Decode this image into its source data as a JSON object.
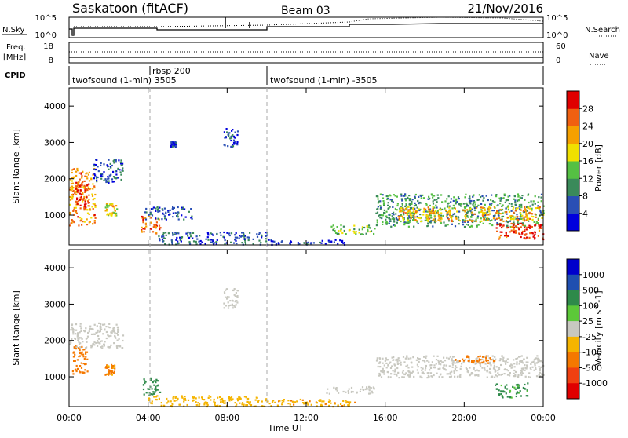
{
  "header": {
    "station": "Saskatoon (fitACF)",
    "beam": "Beam 03",
    "date": "21/Nov/2016"
  },
  "noise_panel": {
    "left_label": "N.Sky",
    "right_label": "N.Search",
    "left_ticks": [
      "10^5",
      "10^0"
    ],
    "right_ticks": [
      "10^5",
      "10^0"
    ]
  },
  "freq_panel": {
    "left_label_line1": "Freq.",
    "left_label_line2": "[MHz]",
    "right_label": "Nave",
    "left_ticks": [
      "18",
      "8"
    ],
    "right_ticks": [
      "60",
      "0"
    ]
  },
  "cpid": {
    "label": "CPID",
    "segments": [
      {
        "start_hour": 0.0,
        "text": "twofsound (1-min) 3505"
      },
      {
        "start_hour": 3.85,
        "text": "rbsp 200"
      },
      {
        "start_hour": 10.0,
        "text": "twofsound (1-min) -3505"
      }
    ]
  },
  "colors": {
    "power_scale": [
      "#0000dd",
      "#2a4fb5",
      "#3a8a5a",
      "#55c043",
      "#f0e000",
      "#f5a000",
      "#f06010",
      "#e00000"
    ],
    "velocity_scale": [
      "#0000cc",
      "#1f4fb0",
      "#2e8a4a",
      "#5cc838",
      "#c8c8c0",
      "#f5b400",
      "#f57800",
      "#f04010",
      "#e00000"
    ],
    "ground_scatter": "#c8c8c0"
  },
  "chart_data": [
    {
      "type": "heatmap",
      "name": "power",
      "ylabel": "Slant Range [km]",
      "yticks": [
        1000,
        2000,
        3000,
        4000
      ],
      "ylim": [
        180,
        4500
      ],
      "xlim": [
        0,
        24
      ],
      "colorbar_label": "Power [dB]",
      "colorbar_ticks": [
        "4",
        "8",
        "12",
        "16",
        "20",
        "24",
        "28"
      ],
      "colorbar_range": [
        0,
        30
      ],
      "blobs": [
        {
          "t0": 0.0,
          "t1": 1.3,
          "r0": 700,
          "r1": 2300,
          "level": 22
        },
        {
          "t0": 0.3,
          "t1": 0.9,
          "r0": 1200,
          "r1": 1900,
          "level": 28
        },
        {
          "t0": 1.2,
          "t1": 2.7,
          "r0": 1900,
          "r1": 2550,
          "level": 6
        },
        {
          "t0": 1.8,
          "t1": 2.4,
          "r0": 1000,
          "r1": 1350,
          "level": 18
        },
        {
          "t0": 3.6,
          "t1": 4.6,
          "r0": 500,
          "r1": 1000,
          "level": 24
        },
        {
          "t0": 3.8,
          "t1": 6.2,
          "r0": 900,
          "r1": 1250,
          "level": 6
        },
        {
          "t0": 4.5,
          "t1": 10.0,
          "r0": 200,
          "r1": 550,
          "level": 6
        },
        {
          "t0": 5.1,
          "t1": 5.4,
          "r0": 2900,
          "r1": 3050,
          "level": 4
        },
        {
          "t0": 7.8,
          "t1": 8.5,
          "r0": 2900,
          "r1": 3400,
          "level": 5
        },
        {
          "t0": 10.0,
          "t1": 14.0,
          "r0": 200,
          "r1": 350,
          "level": 3
        },
        {
          "t0": 13.2,
          "t1": 15.5,
          "r0": 480,
          "r1": 750,
          "level": 14
        },
        {
          "t0": 15.5,
          "t1": 24.0,
          "r0": 700,
          "r1": 1600,
          "level": 10
        },
        {
          "t0": 16.5,
          "t1": 24.0,
          "r0": 850,
          "r1": 1250,
          "level": 20
        },
        {
          "t0": 21.5,
          "t1": 24.0,
          "r0": 350,
          "r1": 800,
          "level": 27
        }
      ]
    },
    {
      "type": "heatmap",
      "name": "velocity",
      "ylabel": "Slant Range [km]",
      "xlabel": "Time UT",
      "xticks": [
        "00:00",
        "04:00",
        "08:00",
        "12:00",
        "16:00",
        "20:00",
        "00:00"
      ],
      "yticks": [
        1000,
        2000,
        3000,
        4000
      ],
      "ylim": [
        180,
        4500
      ],
      "xlim": [
        0,
        24
      ],
      "colorbar_label": "Velocity [m s^-1]",
      "colorbar_ticks": [
        "1000",
        "500",
        "100",
        "25",
        "-25",
        "-100",
        "-500",
        "-1000"
      ],
      "blobs": [
        {
          "t0": 0.0,
          "t1": 2.7,
          "r0": 1800,
          "r1": 2500,
          "v": 0,
          "gs": true
        },
        {
          "t0": 0.1,
          "t1": 0.9,
          "r0": 1100,
          "r1": 1900,
          "v": -400
        },
        {
          "t0": 1.8,
          "t1": 2.3,
          "r0": 1050,
          "r1": 1350,
          "v": -120
        },
        {
          "t0": 3.7,
          "t1": 4.6,
          "r0": 500,
          "r1": 1000,
          "v": 150
        },
        {
          "t0": 4.0,
          "t1": 10.0,
          "r0": 200,
          "r1": 500,
          "v": -60
        },
        {
          "t0": 7.8,
          "t1": 8.5,
          "r0": 2900,
          "r1": 3450,
          "v": 0,
          "gs": true
        },
        {
          "t0": 10.0,
          "t1": 14.5,
          "r0": 200,
          "r1": 400,
          "v": -80
        },
        {
          "t0": 13.0,
          "t1": 15.5,
          "r0": 550,
          "r1": 750,
          "v": 0,
          "gs": true
        },
        {
          "t0": 15.5,
          "t1": 24.0,
          "r0": 1000,
          "r1": 1600,
          "v": 0,
          "gs": true
        },
        {
          "t0": 19.5,
          "t1": 21.5,
          "r0": 1400,
          "r1": 1600,
          "v": -300
        },
        {
          "t0": 21.5,
          "t1": 23.2,
          "r0": 450,
          "r1": 850,
          "v": 120
        }
      ]
    }
  ]
}
